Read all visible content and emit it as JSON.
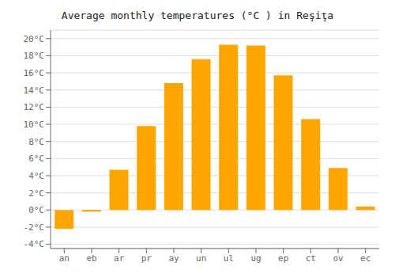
{
  "chart_data": {
    "type": "bar",
    "title": "Average monthly temperatures (°C ) in Reşiţa",
    "categories": [
      "an",
      "eb",
      "ar",
      "pr",
      "ay",
      "un",
      "ul",
      "ug",
      "ep",
      "ct",
      "ov",
      "ec"
    ],
    "values": [
      -2.2,
      -0.2,
      4.7,
      9.8,
      14.8,
      17.6,
      19.3,
      19.2,
      15.7,
      10.6,
      4.9,
      0.4
    ],
    "color": "#FFA500",
    "ylim": [
      -4.5,
      21
    ],
    "yticks": [
      {
        "value": -4,
        "label": "-4°C"
      },
      {
        "value": -2,
        "label": "-2°C"
      },
      {
        "value": 0,
        "label": "0°C"
      },
      {
        "value": 2,
        "label": "2°C"
      },
      {
        "value": 4,
        "label": "4°C"
      },
      {
        "value": 6,
        "label": "6°C"
      },
      {
        "value": 8,
        "label": "8°C"
      },
      {
        "value": 10,
        "label": "10°C"
      },
      {
        "value": 12,
        "label": "12°C"
      },
      {
        "value": 14,
        "label": "14°C"
      },
      {
        "value": 16,
        "label": "16°C"
      },
      {
        "value": 18,
        "label": "18°C"
      },
      {
        "value": 20,
        "label": "20°C"
      }
    ],
    "grid": true
  }
}
